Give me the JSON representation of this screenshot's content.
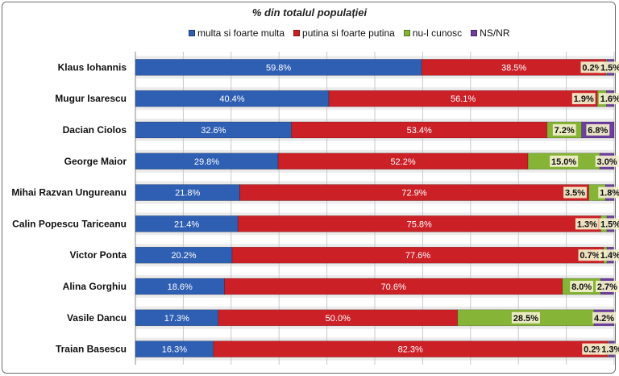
{
  "chart_data": {
    "type": "bar",
    "orientation": "horizontal",
    "stacked": true,
    "title": "% din totalul populației",
    "categories": [
      "Klaus Iohannis",
      "Mugur Isarescu",
      "Dacian Ciolos",
      "George Maior",
      "Mihai Razvan Ungureanu",
      "Calin Popescu Tariceanu",
      "Victor Ponta",
      "Alina Gorghiu",
      "Vasile Dancu",
      "Traian Basescu"
    ],
    "series": [
      {
        "name": "multa si foarte multa",
        "color": "#2f5fb3",
        "values": [
          59.8,
          40.4,
          32.6,
          29.8,
          21.8,
          21.4,
          20.2,
          18.6,
          17.3,
          16.3
        ],
        "labels": [
          "59.8%",
          "40.4%",
          "32.6%",
          "29.8%",
          "21.8%",
          "21.4%",
          "20.2%",
          "18.6%",
          "17.3%",
          "16.3%"
        ]
      },
      {
        "name": "putina si foarte putina",
        "color": "#cc2027",
        "values": [
          38.5,
          56.1,
          53.4,
          52.2,
          72.9,
          75.8,
          77.6,
          70.6,
          50.0,
          82.3
        ],
        "labels": [
          "38.5%",
          "56.1%",
          "53.4%",
          "52.2%",
          "72.9%",
          "75.8%",
          "77.6%",
          "70.6%",
          "50.0%",
          "82.3%"
        ]
      },
      {
        "name": "nu-l cunosc",
        "color": "#85b437",
        "values": [
          0.2,
          1.9,
          7.2,
          15.0,
          3.5,
          1.3,
          0.7,
          8.0,
          28.5,
          0.2
        ],
        "labels": [
          "0.2%",
          "1.9%",
          "7.2%",
          "15.0%",
          "3.5%",
          "1.3%",
          "0.7%",
          "8.0%",
          "28.5%",
          "0.2%"
        ]
      },
      {
        "name": "NS/NR",
        "color": "#6d3f9e",
        "values": [
          1.5,
          1.6,
          6.8,
          3.0,
          1.8,
          1.5,
          1.4,
          2.7,
          4.2,
          1.3
        ],
        "labels": [
          "1.5%",
          "1.6%",
          "6.8%",
          "3.0%",
          "1.8%",
          "1.5%",
          "1.4%",
          "2.7%",
          "4.2%",
          "1.3%"
        ]
      }
    ],
    "xlim": [
      0,
      100
    ],
    "grid": true,
    "legend_position": "top"
  }
}
